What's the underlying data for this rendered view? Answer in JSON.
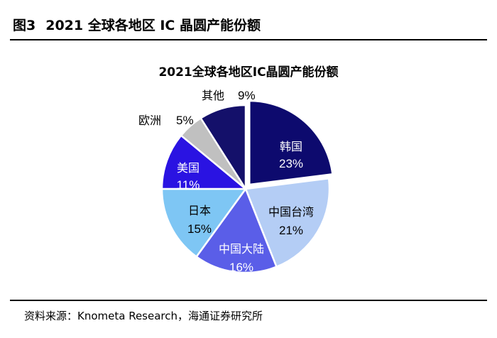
{
  "figure": {
    "number": "图3",
    "title": "2021 全球各地区 IC 晶圆产能份额"
  },
  "source": "资料来源：Knometa Research，海通证券研究所",
  "chart_data": {
    "type": "pie",
    "title": "2021全球各地区IC晶圆产能份额",
    "slices": [
      {
        "label": "韩国",
        "value": 23,
        "value_label": "23%",
        "color": "#0d0a6e",
        "text_color": "#ffffff",
        "exploded": true
      },
      {
        "label": "中国台湾",
        "value": 21,
        "value_label": "21%",
        "color": "#b4cdf5",
        "text_color": "#000000",
        "exploded": false
      },
      {
        "label": "中国大陆",
        "value": 16,
        "value_label": "16%",
        "color": "#5a5ee8",
        "text_color": "#ffffff",
        "exploded": false
      },
      {
        "label": "日本",
        "value": 15,
        "value_label": "15%",
        "color": "#7ec6f4",
        "text_color": "#000000",
        "exploded": false
      },
      {
        "label": "美国",
        "value": 11,
        "value_label": "11%",
        "color": "#2a13e2",
        "text_color": "#ffffff",
        "exploded": false
      },
      {
        "label": "欧洲",
        "value": 5,
        "value_label": "5%",
        "color": "#c0c0c0",
        "text_color": "#000000",
        "exploded": false
      },
      {
        "label": "其他",
        "value": 9,
        "value_label": "9%",
        "color": "#14106a",
        "text_color": "#000000",
        "exploded": false
      }
    ]
  }
}
